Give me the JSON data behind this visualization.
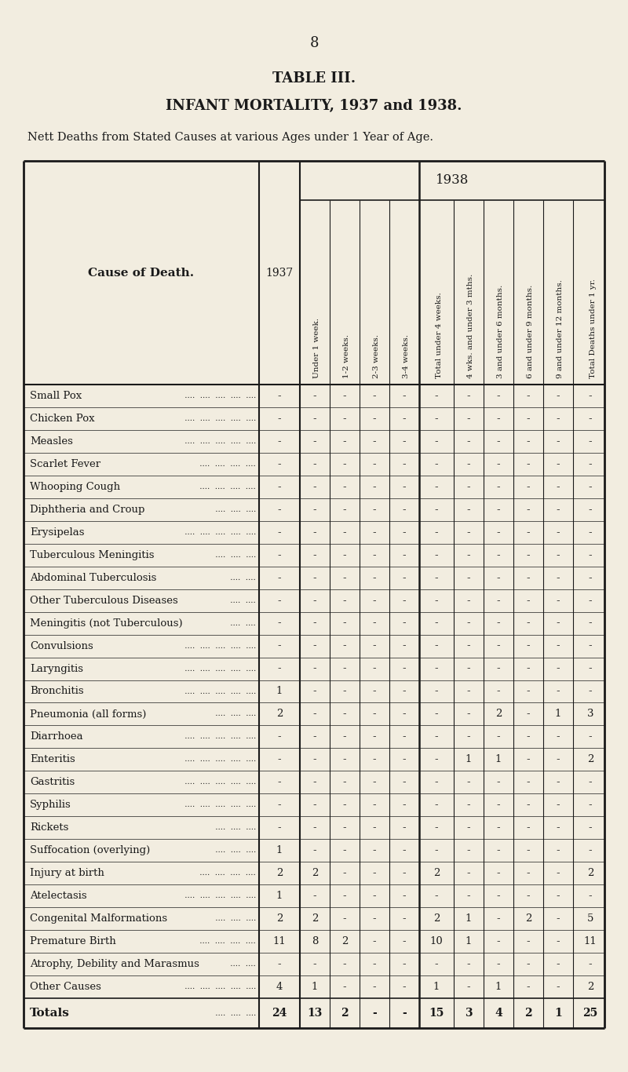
{
  "page_number": "8",
  "title": "TABLE III.",
  "subtitle": "INFANT MORTALITY, 1937 and 1938.",
  "description": "Nett Deaths from Stated Causes at various Ages under 1 Year of Age.",
  "sub_headers": [
    "Under 1 week.",
    "1-2 weeks.",
    "2-3 weeks.",
    "3-4 weeks.",
    "Total under 4 weeks.",
    "4 wks. and under 3 mths.",
    "3 and under 6 months.",
    "6 and under 9 months.",
    "9 and under 12 months.",
    "Total Deaths under 1 yr."
  ],
  "causes": [
    "Small Pox",
    "Chicken Pox",
    "Measles",
    "Scarlet Fever",
    "Whooping Cough",
    "Diphtheria and Croup",
    "Erysipelas",
    "Tuberculous Meningitis",
    "Abdominal Tuberculosis",
    "Other Tuberculous Diseases",
    "Meningitis (not Tuberculous)",
    "Convulsions",
    "Laryngitis",
    "Bronchitis",
    "Pneumonia (all forms)",
    "Diarrhoea",
    "Enteritis",
    "Gastritis",
    "Syphilis",
    "Rickets",
    "Suffocation (overlying)",
    "Injury at birth",
    "Atelectasis",
    "Congenital Malformations",
    "Premature Birth",
    "Atrophy, Debility and Marasmus",
    "Other Causes"
  ],
  "cause_dots": [
    " ....  ....  ....  ....  ....",
    " ....  ....  ....  ....  ....",
    " ....  ....  ....  ....  ....",
    " ....  ....  ....  ....",
    " ....  ....  ....  ....",
    " ....  ....  ....",
    " ....  ....  ....  ....  ....",
    " ....  ....  ....",
    " ....  ....",
    " ....  ....",
    " ....  ....",
    " ....  ....  ....  ....  ....",
    " ....  ....  ....  ....  ....",
    " ....  ....  ....  ....  ....",
    " ....  ....  ....",
    " ....  ....  ....  ....  ....",
    " ....  ....  ....  ....  ....",
    " ....  ....  ....  ....  ....",
    " ....  ....  ....  ....  ....",
    " ....  ....  ....",
    " ....  ....  ....",
    " ....  ....  ....  ....",
    " ....  ....  ....  ....  ....",
    " ....  ....  ....",
    " ....  ....  ....  ....",
    " ....  ....",
    " ....  ....  ....  ....  ...."
  ],
  "data": [
    [
      "-",
      "-",
      "-",
      "-",
      "-",
      "-",
      "-",
      "-",
      "-",
      "-",
      "-"
    ],
    [
      "-",
      "-",
      "-",
      "-",
      "-",
      "-",
      "-",
      "-",
      "-",
      "-",
      "-"
    ],
    [
      "-",
      "-",
      "-",
      "-",
      "-",
      "-",
      "-",
      "-",
      "-",
      "-",
      "-"
    ],
    [
      "-",
      "-",
      "-",
      "-",
      "-",
      "-",
      "-",
      "-",
      "-",
      "-",
      "-"
    ],
    [
      "-",
      "-",
      "-",
      "-",
      "-",
      "-",
      "-",
      "-",
      "-",
      "-",
      "-"
    ],
    [
      "-",
      "-",
      "-",
      "-",
      "-",
      "-",
      "-",
      "-",
      "-",
      "-",
      "-"
    ],
    [
      "-",
      "-",
      "-",
      "-",
      "-",
      "-",
      "-",
      "-",
      "-",
      "-",
      "-"
    ],
    [
      "-",
      "-",
      "-",
      "-",
      "-",
      "-",
      "-",
      "-",
      "-",
      "-",
      "-"
    ],
    [
      "-",
      "-",
      "-",
      "-",
      "-",
      "-",
      "-",
      "-",
      "-",
      "-",
      "-"
    ],
    [
      "-",
      "-",
      "-",
      "-",
      "-",
      "-",
      "-",
      "-",
      "-",
      "-",
      "-"
    ],
    [
      "-",
      "-",
      "-",
      "-",
      "-",
      "-",
      "-",
      "-",
      "-",
      "-",
      "-"
    ],
    [
      "-",
      "-",
      "-",
      "-",
      "-",
      "-",
      "-",
      "-",
      "-",
      "-",
      "-"
    ],
    [
      "-",
      "-",
      "-",
      "-",
      "-",
      "-",
      "-",
      "-",
      "-",
      "-",
      "-"
    ],
    [
      "1",
      "-",
      "-",
      "-",
      "-",
      "-",
      "-",
      "-",
      "-",
      "-",
      "-"
    ],
    [
      "2",
      "-",
      "-",
      "-",
      "-",
      "-",
      "-",
      "2",
      "-",
      "1",
      "3"
    ],
    [
      "-",
      "-",
      "-",
      "-",
      "-",
      "-",
      "-",
      "-",
      "-",
      "-",
      "-"
    ],
    [
      "-",
      "-",
      "-",
      "-",
      "-",
      "-",
      "1",
      "1",
      "-",
      "-",
      "2"
    ],
    [
      "-",
      "-",
      "-",
      "-",
      "-",
      "-",
      "-",
      "-",
      "-",
      "-",
      "-"
    ],
    [
      "-",
      "-",
      "-",
      "-",
      "-",
      "-",
      "-",
      "-",
      "-",
      "-",
      "-"
    ],
    [
      "-",
      "-",
      "-",
      "-",
      "-",
      "-",
      "-",
      "-",
      "-",
      "-",
      "-"
    ],
    [
      "1",
      "-",
      "-",
      "-",
      "-",
      "-",
      "-",
      "-",
      "-",
      "-",
      "-"
    ],
    [
      "2",
      "2",
      "-",
      "-",
      "-",
      "2",
      "-",
      "-",
      "-",
      "-",
      "2"
    ],
    [
      "1",
      "-",
      "-",
      "-",
      "-",
      "-",
      "-",
      "-",
      "-",
      "-",
      "-"
    ],
    [
      "2",
      "2",
      "-",
      "-",
      "-",
      "2",
      "1",
      "-",
      "2",
      "-",
      "5"
    ],
    [
      "11",
      "8",
      "2",
      "-",
      "-",
      "10",
      "1",
      "-",
      "-",
      "-",
      "11"
    ],
    [
      "-",
      "-",
      "-",
      "-",
      "-",
      "-",
      "-",
      "-",
      "-",
      "-",
      "-"
    ],
    [
      "4",
      "1",
      "-",
      "-",
      "-",
      "1",
      "-",
      "1",
      "-",
      "-",
      "2"
    ]
  ],
  "totals": [
    "24",
    "13",
    "2",
    "-",
    "-",
    "15",
    "3",
    "4",
    "2",
    "1",
    "25"
  ],
  "bg_color": "#f2ede0",
  "text_color": "#1a1a1a",
  "line_color": "#1a1a1a"
}
